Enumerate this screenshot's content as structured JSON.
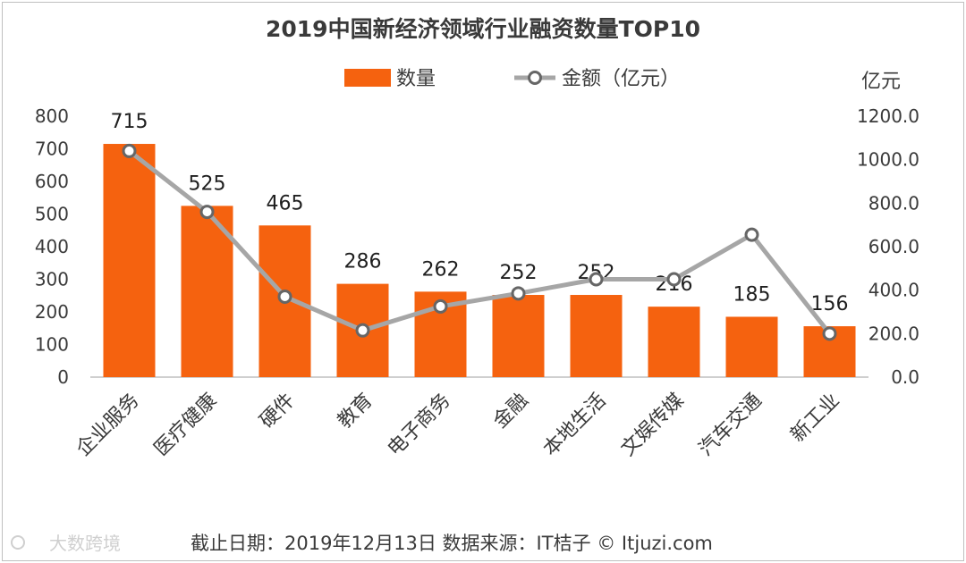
{
  "chart_data": {
    "type": "bar",
    "title": "2019中国新经济领域行业融资数量TOP10",
    "categories": [
      "企业服务",
      "医疗健康",
      "硬件",
      "教育",
      "电子商务",
      "金融",
      "本地生活",
      "文娱传媒",
      "汽车交通",
      "新工业"
    ],
    "series": [
      {
        "name": "数量",
        "type": "bar",
        "axis": "left",
        "color": "#f5620f",
        "values": [
          715,
          525,
          465,
          286,
          262,
          252,
          252,
          216,
          185,
          156
        ],
        "labels": [
          "715",
          "525",
          "465",
          "286",
          "262",
          "252",
          "252",
          "216",
          "185",
          "156"
        ]
      },
      {
        "name": "金额（亿元）",
        "type": "line",
        "axis": "right",
        "color": "#a6a6a6",
        "values": [
          1040,
          760,
          370,
          215,
          325,
          385,
          450,
          450,
          655,
          200
        ]
      }
    ],
    "left_axis": {
      "min": 0,
      "max": 800,
      "step": 100,
      "ticks": [
        "0",
        "100",
        "200",
        "300",
        "400",
        "500",
        "600",
        "700",
        "800"
      ]
    },
    "right_axis": {
      "min": 0,
      "max": 1200,
      "step": 200,
      "unit": "亿元",
      "ticks": [
        "0.0",
        "200.0",
        "400.0",
        "600.0",
        "800.0",
        "1000.0",
        "1200.0"
      ]
    },
    "legend_position": "top-right"
  },
  "footer": "截止日期：2019年12月13日    数据来源：IT桔子 © Itjuzi.com",
  "watermark": "大数跨境"
}
